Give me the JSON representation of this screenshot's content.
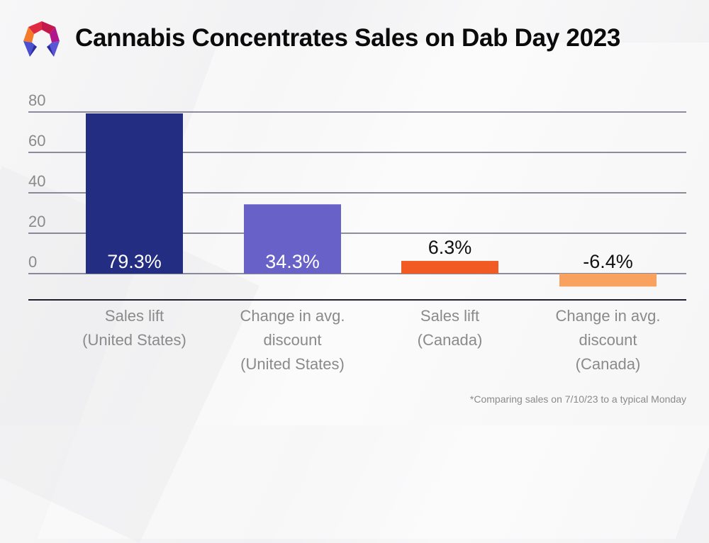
{
  "header": {
    "title": "Cannabis Concentrates Sales on Dab Day 2023",
    "logo": "polygon-logo-icon"
  },
  "footnote": "*Comparing sales on 7/10/23 to a typical Monday",
  "chart_data": {
    "type": "bar",
    "title": "Cannabis Concentrates Sales on Dab Day 2023",
    "categories": [
      [
        "Sales lift",
        "(United States)"
      ],
      [
        "Change in avg.",
        "discount",
        "(United States)"
      ],
      [
        "Sales lift",
        "(Canada)"
      ],
      [
        "Change in avg.",
        "discount",
        "(Canada)"
      ]
    ],
    "values": [
      79.3,
      34.3,
      6.3,
      -6.4
    ],
    "data_labels": [
      "79.3%",
      "34.3%",
      "6.3%",
      "-6.4%"
    ],
    "colors": [
      "#232d82",
      "#6862c8",
      "#f15a22",
      "#f9a15e"
    ],
    "label_colors": [
      "#ffffff",
      "#ffffff",
      "#111111",
      "#111111"
    ],
    "yticks": [
      0,
      20,
      40,
      60,
      80
    ],
    "ylim": [
      -12,
      80
    ],
    "xlabel": "",
    "ylabel": "",
    "grid": true,
    "legend": "none"
  }
}
